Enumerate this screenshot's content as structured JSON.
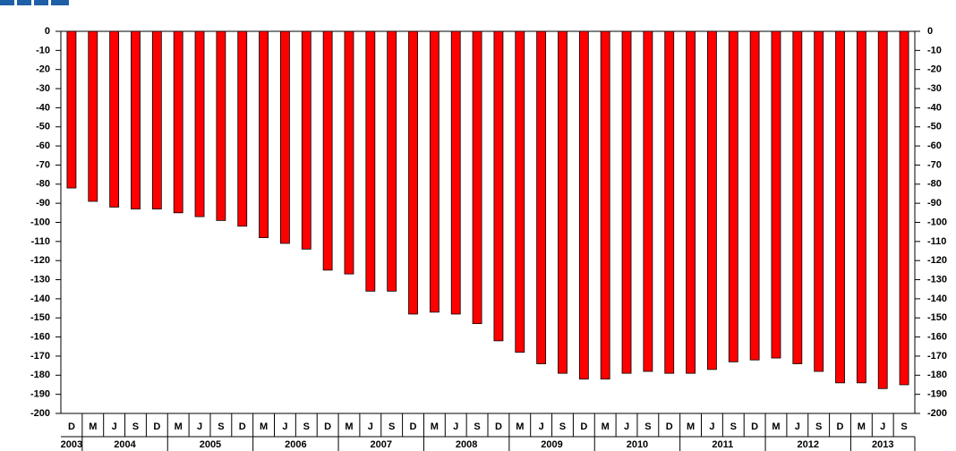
{
  "chart_data": {
    "type": "bar",
    "categories": [
      "D",
      "M",
      "J",
      "S",
      "D",
      "M",
      "J",
      "S",
      "D",
      "M",
      "J",
      "S",
      "D",
      "M",
      "J",
      "S",
      "D",
      "M",
      "J",
      "S",
      "D",
      "M",
      "J",
      "S",
      "D",
      "M",
      "J",
      "S",
      "D",
      "M",
      "J",
      "S",
      "D",
      "M",
      "J",
      "S",
      "D",
      "M",
      "J",
      "S"
    ],
    "years": [
      "2003",
      "2004",
      "2005",
      "2006",
      "2007",
      "2008",
      "2009",
      "2010",
      "2011",
      "2012",
      "2013"
    ],
    "values": [
      -82,
      -89,
      -92,
      -93,
      -93,
      -95,
      -97,
      -99,
      -102,
      -108,
      -111,
      -114,
      -125,
      -127,
      -136,
      -136,
      -148,
      -147,
      -148,
      -153,
      -162,
      -168,
      -174,
      -179,
      -182,
      -182,
      -179,
      -178,
      -179,
      -179,
      -177,
      -173,
      -172,
      -171,
      -174,
      -178,
      -184,
      -184,
      -187,
      -185
    ],
    "color": "#ff0000",
    "ylim": [
      -200,
      0
    ],
    "yticks": [
      0,
      -10,
      -20,
      -30,
      -40,
      -50,
      -60,
      -70,
      -80,
      -90,
      -100,
      -110,
      -120,
      -130,
      -140,
      -150,
      -160,
      -170,
      -180,
      -190,
      -200
    ],
    "grid": false
  }
}
